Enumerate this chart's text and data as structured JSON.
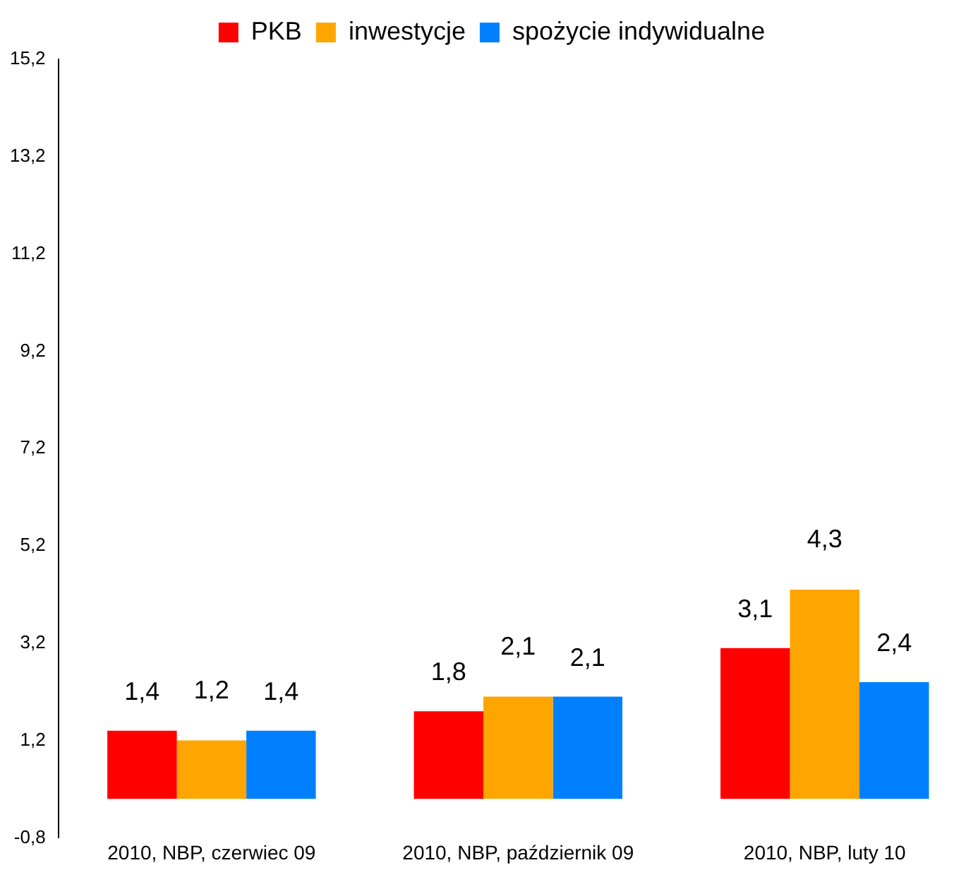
{
  "chart_data": {
    "type": "bar",
    "categories": [
      "2010, NBP, czerwiec 09",
      "2010, NBP, październik 09",
      "2010, NBP, luty 10"
    ],
    "series": [
      {
        "name": "PKB",
        "color": "#ff0000",
        "values": [
          1.4,
          1.8,
          3.1
        ],
        "value_labels": [
          "1,4",
          "1,8",
          "3,1"
        ]
      },
      {
        "name": "inwestycje",
        "color": "#ffa500",
        "values": [
          1.2,
          2.1,
          4.3
        ],
        "value_labels": [
          "1,2",
          "2,1",
          "4,3"
        ]
      },
      {
        "name": "spożycie indywidualne",
        "color": "#0080ff",
        "values": [
          1.4,
          2.1,
          2.4
        ],
        "value_labels": [
          "1,4",
          "2,1",
          "2,4"
        ]
      }
    ],
    "ylim": [
      -0.8,
      15.2
    ],
    "yticks": [
      {
        "value": -0.8,
        "label": "-0,8"
      },
      {
        "value": 1.2,
        "label": "1,2"
      },
      {
        "value": 3.2,
        "label": "3,2"
      },
      {
        "value": 5.2,
        "label": "5,2"
      },
      {
        "value": 7.2,
        "label": "7,2"
      },
      {
        "value": 9.2,
        "label": "9,2"
      },
      {
        "value": 11.2,
        "label": "11,2"
      },
      {
        "value": 13.2,
        "label": "13,2"
      },
      {
        "value": 15.2,
        "label": "15,2"
      }
    ],
    "grid": false,
    "legend": "top"
  }
}
